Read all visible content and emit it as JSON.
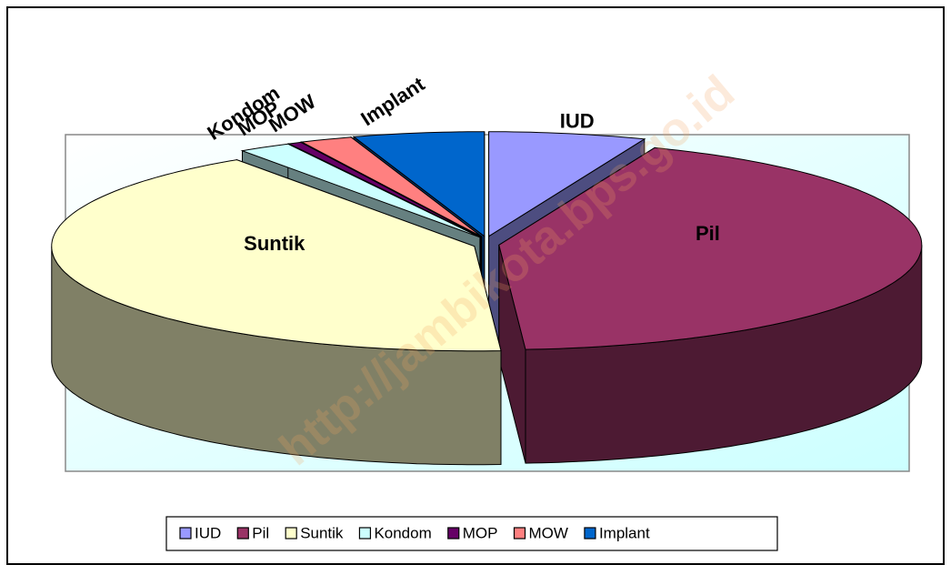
{
  "chart_data": {
    "type": "pie3d",
    "categories": [
      "IUD",
      "Pil",
      "Suntik",
      "Kondom",
      "MOP",
      "MOW",
      "Implant"
    ],
    "values": [
      6,
      43,
      41.5,
      2,
      0.5,
      2,
      5
    ],
    "colors": [
      "#9999ff",
      "#993366",
      "#ffffcc",
      "#ccffff",
      "#660066",
      "#ff8080",
      "#0066cc"
    ],
    "legend": "bottom",
    "watermark": "http://jambikota.bps.go.id"
  }
}
